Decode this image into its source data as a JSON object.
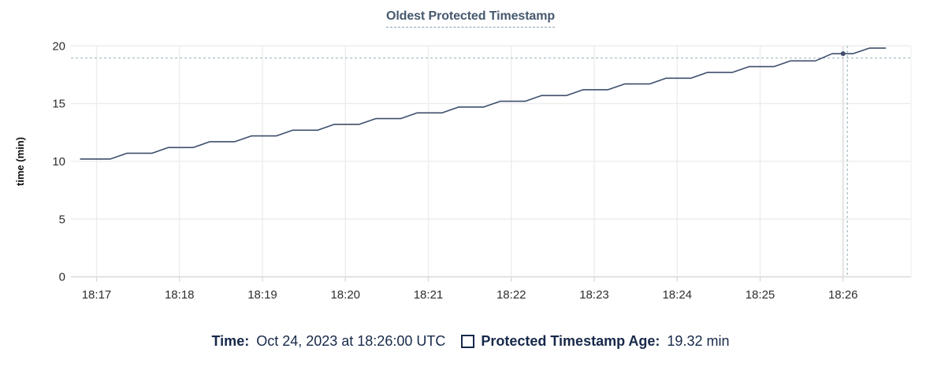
{
  "title": {
    "text": "Oldest Protected Timestamp"
  },
  "legend": {
    "time_label": "Time:",
    "time_value": "Oct 24, 2023 at 18:26:00 UTC",
    "age_label": "Protected Timestamp Age:",
    "age_value": "19.32 min"
  },
  "colors": {
    "line": "#3e4e6b",
    "point": "#3e4e6b",
    "crosshair": "#a4bbc3",
    "grid": "#ececec",
    "grid_hover": "#e8e8e8",
    "axis": "#d8d8d8",
    "tick_text": "#2e2e2e",
    "title_text": "#45586e",
    "title_underline": "#8da0b6",
    "legend_text": "#17294a"
  },
  "chart_data": {
    "type": "line",
    "title": "Oldest Protected Timestamp",
    "xlabel": "",
    "ylabel": "time (min)",
    "x_tick_labels": [
      "18:17",
      "18:18",
      "18:19",
      "18:20",
      "18:21",
      "18:22",
      "18:23",
      "18:24",
      "18:25",
      "18:26"
    ],
    "y_ticks": [
      0,
      5,
      10,
      15,
      20
    ],
    "ylim": [
      0,
      20
    ],
    "grid": true,
    "legend_position": "bottom",
    "series": [
      {
        "name": "Protected Timestamp Age",
        "unit": "min",
        "points_t_v": [
          [
            -12,
            10.2
          ],
          [
            10,
            10.2
          ],
          [
            22,
            10.7
          ],
          [
            40,
            10.7
          ],
          [
            52,
            11.2
          ],
          [
            70,
            11.2
          ],
          [
            82,
            11.7
          ],
          [
            100,
            11.7
          ],
          [
            112,
            12.2
          ],
          [
            130,
            12.2
          ],
          [
            142,
            12.7
          ],
          [
            160,
            12.7
          ],
          [
            172,
            13.2
          ],
          [
            190,
            13.2
          ],
          [
            202,
            13.7
          ],
          [
            220,
            13.7
          ],
          [
            232,
            14.2
          ],
          [
            250,
            14.2
          ],
          [
            262,
            14.7
          ],
          [
            280,
            14.7
          ],
          [
            292,
            15.2
          ],
          [
            310,
            15.2
          ],
          [
            322,
            15.7
          ],
          [
            340,
            15.7
          ],
          [
            352,
            16.2
          ],
          [
            370,
            16.2
          ],
          [
            382,
            16.7
          ],
          [
            400,
            16.7
          ],
          [
            412,
            17.2
          ],
          [
            430,
            17.2
          ],
          [
            442,
            17.7
          ],
          [
            460,
            17.7
          ],
          [
            472,
            18.2
          ],
          [
            490,
            18.2
          ],
          [
            502,
            18.7
          ],
          [
            520,
            18.7
          ],
          [
            532,
            19.32
          ],
          [
            547,
            19.32
          ],
          [
            559,
            19.8
          ],
          [
            571,
            19.8
          ]
        ],
        "t_note": "seconds relative to 18:17:00"
      }
    ],
    "hover": {
      "t": 540,
      "x_label": "18:26",
      "time_text": "Oct 24, 2023 at 18:26:00 UTC",
      "value_min": 19.32
    }
  }
}
